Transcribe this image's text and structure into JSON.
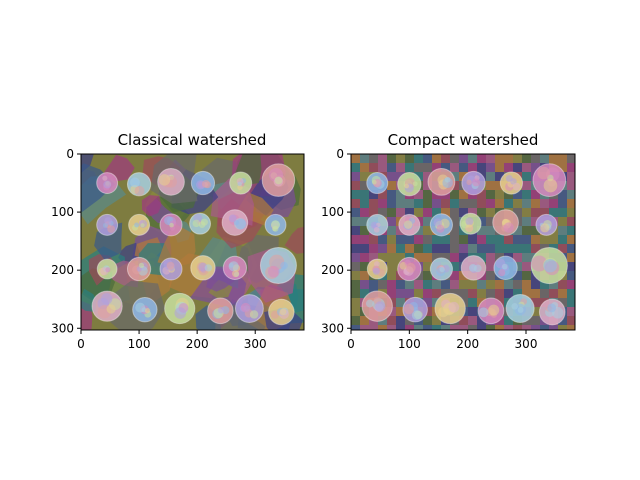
{
  "panels": [
    {
      "title": "Classical watershed",
      "xticks": [
        "0",
        "100",
        "200",
        "300"
      ],
      "yticks": [
        "0",
        "100",
        "200",
        "300"
      ],
      "xlim": [
        0,
        384
      ],
      "ylim": [
        303,
        0
      ],
      "segmentation": "irregular",
      "background": "#7e7c40"
    },
    {
      "title": "Compact watershed",
      "xticks": [
        "0",
        "100",
        "200",
        "300"
      ],
      "yticks": [
        "0",
        "100",
        "200",
        "300"
      ],
      "xlim": [
        0,
        384
      ],
      "ylim": [
        303,
        0
      ],
      "segmentation": "grid",
      "background": "#6b5a5e"
    }
  ],
  "coins": [
    {
      "x": 45,
      "y": 50,
      "r": 18
    },
    {
      "x": 100,
      "y": 52,
      "r": 20
    },
    {
      "x": 155,
      "y": 48,
      "r": 23
    },
    {
      "x": 210,
      "y": 50,
      "r": 20
    },
    {
      "x": 275,
      "y": 50,
      "r": 19
    },
    {
      "x": 340,
      "y": 45,
      "r": 28
    },
    {
      "x": 45,
      "y": 122,
      "r": 18
    },
    {
      "x": 100,
      "y": 122,
      "r": 18
    },
    {
      "x": 155,
      "y": 122,
      "r": 19
    },
    {
      "x": 205,
      "y": 120,
      "r": 18
    },
    {
      "x": 265,
      "y": 118,
      "r": 22
    },
    {
      "x": 335,
      "y": 122,
      "r": 18
    },
    {
      "x": 45,
      "y": 198,
      "r": 17
    },
    {
      "x": 100,
      "y": 198,
      "r": 20
    },
    {
      "x": 155,
      "y": 198,
      "r": 19
    },
    {
      "x": 210,
      "y": 196,
      "r": 21
    },
    {
      "x": 265,
      "y": 196,
      "r": 20
    },
    {
      "x": 340,
      "y": 192,
      "r": 31
    },
    {
      "x": 45,
      "y": 262,
      "r": 26
    },
    {
      "x": 110,
      "y": 268,
      "r": 21
    },
    {
      "x": 170,
      "y": 266,
      "r": 26
    },
    {
      "x": 240,
      "y": 270,
      "r": 22
    },
    {
      "x": 290,
      "y": 266,
      "r": 24
    },
    {
      "x": 345,
      "y": 272,
      "r": 22
    }
  ],
  "colors": {
    "axis": "#000000",
    "palette": [
      "#a0397f",
      "#3b3f86",
      "#2a7f7f",
      "#8a8a3c",
      "#9c4a5a",
      "#4c6b3a",
      "#7a4d9a",
      "#b07a3a",
      "#39598c",
      "#6a6a6a",
      "#a85a8a",
      "#5a8a8a"
    ],
    "coin_palette": [
      "#d88ac0",
      "#a8d0e0",
      "#e0b0c8",
      "#90b8e8",
      "#c8e0a0",
      "#e0a0a0",
      "#b0a0e0",
      "#e8d090"
    ]
  }
}
